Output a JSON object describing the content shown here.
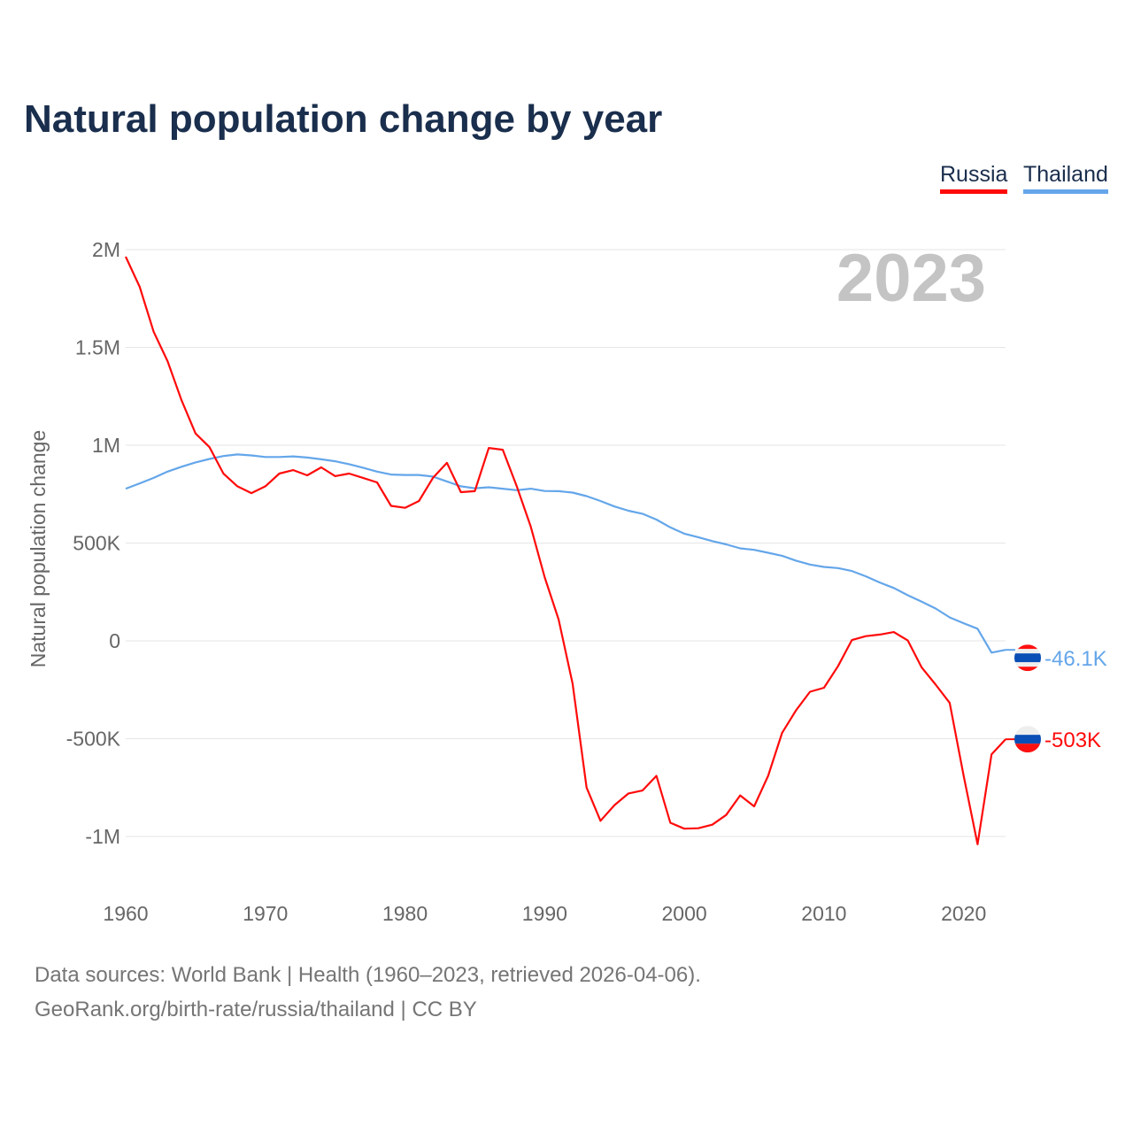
{
  "title": "Natural population change by year",
  "legend": {
    "russia": "Russia",
    "thailand": "Thailand"
  },
  "footer": {
    "line1": "Data sources: World Bank | Health (1960–2023, retrieved 2026-04-06).",
    "line2": "GeoRank.org/birth-rate/russia/thailand | CC BY"
  },
  "chart_data": {
    "type": "line",
    "title": "Natural population change by year",
    "xlabel": "",
    "ylabel": "Natural population change",
    "year_label": "2023",
    "xlim": [
      1960,
      2023
    ],
    "ylim": [
      -1000000,
      2000000
    ],
    "x_ticks": [
      1960,
      1970,
      1980,
      1990,
      2000,
      2010,
      2020
    ],
    "y_ticks": [
      {
        "v": 2000000,
        "label": "2M"
      },
      {
        "v": 1500000,
        "label": "1.5M"
      },
      {
        "v": 1000000,
        "label": "1M"
      },
      {
        "v": 500000,
        "label": "500K"
      },
      {
        "v": 0,
        "label": "0"
      },
      {
        "v": -500000,
        "label": "-500K"
      },
      {
        "v": -1000000,
        "label": "-1M"
      }
    ],
    "grid": true,
    "legend_position": "top-right",
    "x_start": 1960,
    "series": [
      {
        "name": "Russia",
        "color": "#ff0a0a",
        "end_label": "-503K",
        "flag": "russia-flag",
        "values": [
          1964000,
          1810000,
          1580000,
          1430000,
          1230000,
          1060000,
          990000,
          855000,
          790000,
          755000,
          790000,
          855000,
          873000,
          846000,
          887000,
          842000,
          855000,
          833000,
          810000,
          690000,
          680000,
          715000,
          833000,
          910000,
          760000,
          765000,
          986000,
          977000,
          790000,
          584000,
          326000,
          109000,
          -219000,
          -750000,
          -920000,
          -840000,
          -780000,
          -765000,
          -690000,
          -930000,
          -960000,
          -958000,
          -940000,
          -890000,
          -790000,
          -846000,
          -690000,
          -470000,
          -355000,
          -260000,
          -240000,
          -130000,
          4000,
          24000,
          32000,
          45000,
          2000,
          -136000,
          -224000,
          -317000,
          -690000,
          -1040000,
          -580000,
          -503000
        ]
      },
      {
        "name": "Thailand",
        "color": "#64a6ea",
        "end_label": "-46.1K",
        "flag": "thailand-flag",
        "values": [
          778000,
          805000,
          833000,
          865000,
          890000,
          912000,
          930000,
          945000,
          953000,
          948000,
          940000,
          940000,
          943000,
          937000,
          928000,
          918000,
          903000,
          885000,
          865000,
          850000,
          848000,
          848000,
          840000,
          815000,
          790000,
          780000,
          785000,
          778000,
          770000,
          778000,
          766000,
          765000,
          758000,
          740000,
          715000,
          687000,
          665000,
          650000,
          620000,
          580000,
          548000,
          530000,
          510000,
          493000,
          473000,
          465000,
          450000,
          435000,
          410000,
          390000,
          378000,
          372000,
          357000,
          330000,
          298000,
          270000,
          233000,
          200000,
          165000,
          120000,
          90000,
          62000,
          -60000,
          -46100
        ]
      }
    ]
  }
}
